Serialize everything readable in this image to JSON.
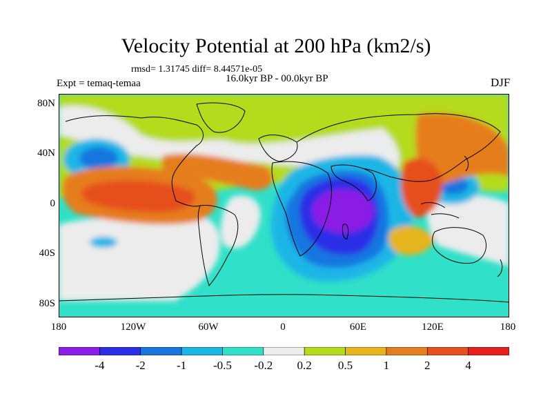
{
  "title": "Velocity Potential at 200 hPa (km2/s)",
  "stats": "rmsd= 1.31745 diff= 8.44571e-05",
  "period": "16.0kyr BP - 00.0kyr BP",
  "experiment": "Expt = temaq-temaa",
  "season": "DJF",
  "lat_labels": [
    "80N",
    "40N",
    "0",
    "40S",
    "80S"
  ],
  "lon_labels": [
    "180",
    "120W",
    "60W",
    "0",
    "60E",
    "120E",
    "180"
  ],
  "colorbar": {
    "colors": [
      "#8a1ee6",
      "#2a2ee6",
      "#1976e0",
      "#1cb6e6",
      "#30e0c8",
      "#ececec",
      "#b4dc1e",
      "#e6b41e",
      "#e67d1e",
      "#e6501e",
      "#e61e1e"
    ],
    "labels": [
      "-4",
      "-2",
      "-1",
      "-0.5",
      "-0.2",
      "0.2",
      "0.5",
      "1",
      "2",
      "4"
    ]
  }
}
